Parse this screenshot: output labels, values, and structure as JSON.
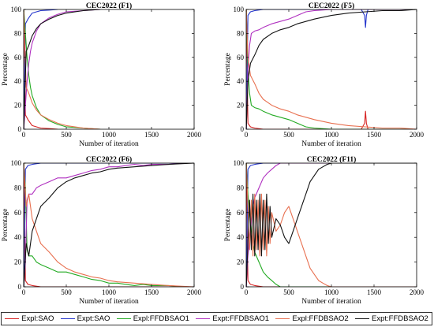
{
  "chart_data": [
    {
      "type": "line",
      "title": "CEC2022 (F1)",
      "xlabel": "Number of iteration",
      "ylabel": "Percentage",
      "xlim": [
        0,
        2000
      ],
      "ylim": [
        0,
        100
      ],
      "xticks": [
        0,
        500,
        1000,
        1500,
        2000
      ],
      "yticks": [
        0,
        20,
        40,
        60,
        80,
        100
      ],
      "grid": false,
      "series": [
        {
          "name": "Expl:SAO",
          "color": "#d62020",
          "x": [
            1,
            20,
            50,
            80,
            100,
            150,
            200,
            300,
            400
          ],
          "y": [
            100,
            12,
            8,
            5,
            3,
            2,
            1,
            0.5,
            0
          ]
        },
        {
          "name": "Expt:SAO",
          "color": "#2233cc",
          "x": [
            1,
            20,
            50,
            80,
            100,
            150,
            200,
            300,
            400
          ],
          "y": [
            0,
            88,
            92,
            95,
            97,
            98,
            99,
            99.5,
            100
          ]
        },
        {
          "name": "Expl:FFDBSAO1",
          "color": "#22aa22",
          "x": [
            1,
            20,
            40,
            60,
            80,
            100,
            150,
            200,
            300,
            400,
            500,
            700,
            900
          ],
          "y": [
            100,
            80,
            60,
            45,
            35,
            28,
            18,
            12,
            7,
            4,
            2,
            1,
            0
          ]
        },
        {
          "name": "Expt:FFDBSAO1",
          "color": "#b030c0",
          "x": [
            1,
            20,
            40,
            60,
            80,
            100,
            150,
            200,
            300,
            400,
            500,
            700,
            900
          ],
          "y": [
            0,
            20,
            40,
            55,
            65,
            72,
            82,
            88,
            93,
            96,
            98,
            99,
            100
          ]
        },
        {
          "name": "Expl:FFDBSAO2",
          "color": "#e87050",
          "x": [
            1,
            30,
            60,
            100,
            150,
            200,
            300,
            400,
            500,
            700,
            900
          ],
          "y": [
            100,
            35,
            30,
            22,
            16,
            12,
            8,
            5,
            3,
            1,
            0
          ]
        },
        {
          "name": "Expt:FFDBSAO2",
          "color": "#111111",
          "x": [
            1,
            30,
            60,
            100,
            150,
            200,
            300,
            400,
            500,
            700,
            900
          ],
          "y": [
            0,
            65,
            70,
            78,
            84,
            88,
            92,
            95,
            97,
            99,
            100
          ]
        }
      ]
    },
    {
      "type": "line",
      "title": "CEC2022 (F5)",
      "xlabel": "Number of iteration",
      "ylabel": "Percentage",
      "xlim": [
        0,
        2000
      ],
      "ylim": [
        0,
        100
      ],
      "xticks": [
        0,
        500,
        1000,
        1500,
        2000
      ],
      "yticks": [
        0,
        20,
        40,
        60,
        80,
        100
      ],
      "grid": false,
      "series": [
        {
          "name": "Expl:SAO",
          "color": "#d62020",
          "x": [
            1,
            20,
            50,
            100,
            200,
            1350,
            1390,
            1400,
            1410,
            1430,
            2000
          ],
          "y": [
            100,
            5,
            2,
            1,
            0,
            0,
            5,
            15,
            5,
            0,
            0
          ]
        },
        {
          "name": "Expt:SAO",
          "color": "#2233cc",
          "x": [
            1,
            20,
            50,
            100,
            200,
            1350,
            1390,
            1400,
            1410,
            1430,
            2000
          ],
          "y": [
            0,
            95,
            98,
            99,
            100,
            100,
            95,
            85,
            95,
            100,
            100
          ]
        },
        {
          "name": "Expl:FFDBSAO1",
          "color": "#22aa22",
          "x": [
            1,
            20,
            40,
            60,
            100,
            150,
            200,
            300,
            400,
            500,
            600,
            700,
            800,
            1000,
            2000
          ],
          "y": [
            100,
            50,
            30,
            20,
            18,
            17,
            15,
            12,
            10,
            8,
            5,
            2,
            1,
            0,
            0
          ]
        },
        {
          "name": "Expt:FFDBSAO1",
          "color": "#b030c0",
          "x": [
            1,
            20,
            40,
            60,
            100,
            150,
            200,
            300,
            400,
            500,
            600,
            700,
            800,
            1000,
            2000
          ],
          "y": [
            0,
            50,
            70,
            80,
            82,
            83,
            85,
            88,
            90,
            92,
            95,
            98,
            99,
            100,
            100
          ]
        },
        {
          "name": "Expl:FFDBSAO2",
          "color": "#e87050",
          "x": [
            1,
            20,
            50,
            100,
            150,
            200,
            300,
            400,
            500,
            600,
            700,
            800,
            1000,
            1200,
            1400,
            1600,
            1800,
            2000
          ],
          "y": [
            100,
            60,
            45,
            38,
            30,
            25,
            20,
            17,
            15,
            12,
            10,
            8,
            5,
            3,
            2,
            1,
            1,
            0
          ]
        },
        {
          "name": "Expt:FFDBSAO2",
          "color": "#111111",
          "x": [
            1,
            20,
            50,
            100,
            150,
            200,
            300,
            400,
            500,
            600,
            700,
            800,
            1000,
            1200,
            1400,
            1600,
            1800,
            2000
          ],
          "y": [
            0,
            40,
            55,
            62,
            70,
            75,
            80,
            83,
            85,
            88,
            90,
            92,
            95,
            97,
            98,
            99,
            99,
            100
          ]
        }
      ]
    },
    {
      "type": "line",
      "title": "CEC2022 (F6)",
      "xlabel": "Number of iteration",
      "ylabel": "Percentage",
      "xlim": [
        0,
        2000
      ],
      "ylim": [
        0,
        100
      ],
      "xticks": [
        0,
        500,
        1000,
        1500,
        2000
      ],
      "yticks": [
        0,
        20,
        40,
        60,
        80,
        100
      ],
      "grid": false,
      "series": [
        {
          "name": "Expl:SAO",
          "color": "#d62020",
          "x": [
            1,
            20,
            50,
            100,
            200,
            2000
          ],
          "y": [
            100,
            5,
            2,
            1,
            0,
            0
          ]
        },
        {
          "name": "Expt:SAO",
          "color": "#2233cc",
          "x": [
            1,
            20,
            50,
            100,
            200,
            2000
          ],
          "y": [
            0,
            95,
            98,
            99,
            100,
            100
          ]
        },
        {
          "name": "Expl:FFDBSAO1",
          "color": "#22aa22",
          "x": [
            1,
            20,
            40,
            60,
            100,
            150,
            200,
            300,
            400,
            500,
            600,
            700,
            800,
            900,
            1000,
            1100,
            1200,
            1300,
            1400,
            1500,
            1700,
            1900,
            2000
          ],
          "y": [
            100,
            80,
            30,
            25,
            25,
            20,
            18,
            15,
            12,
            12,
            10,
            8,
            6,
            5,
            3,
            3,
            2,
            1,
            2,
            1,
            1,
            0,
            0
          ]
        },
        {
          "name": "Expt:FFDBSAO1",
          "color": "#b030c0",
          "x": [
            1,
            20,
            40,
            60,
            100,
            150,
            200,
            300,
            400,
            500,
            600,
            700,
            800,
            900,
            1000,
            1100,
            1200,
            1300,
            1400,
            1500,
            1700,
            1900,
            2000
          ],
          "y": [
            0,
            20,
            70,
            75,
            75,
            80,
            82,
            85,
            88,
            88,
            90,
            92,
            94,
            95,
            97,
            97,
            98,
            99,
            98,
            99,
            99,
            100,
            100
          ]
        },
        {
          "name": "Expl:FFDBSAO2",
          "color": "#e87050",
          "x": [
            1,
            30,
            60,
            100,
            150,
            200,
            300,
            400,
            500,
            600,
            700,
            800,
            900,
            1000,
            1100,
            1300,
            1500,
            1700,
            2000
          ],
          "y": [
            100,
            65,
            75,
            55,
            45,
            35,
            28,
            20,
            15,
            12,
            10,
            8,
            7,
            5,
            4,
            3,
            2,
            1,
            0
          ]
        },
        {
          "name": "Expt:FFDBSAO2",
          "color": "#111111",
          "x": [
            1,
            30,
            60,
            100,
            150,
            200,
            300,
            400,
            500,
            600,
            700,
            800,
            900,
            1000,
            1100,
            1300,
            1500,
            1700,
            2000
          ],
          "y": [
            0,
            35,
            25,
            45,
            55,
            65,
            72,
            80,
            85,
            88,
            90,
            92,
            93,
            95,
            96,
            97,
            98,
            99,
            100
          ]
        }
      ]
    },
    {
      "type": "line",
      "title": "CEC2022 (F11)",
      "xlabel": "Number of iteration",
      "ylabel": "Percentage",
      "xlim": [
        0,
        2000
      ],
      "ylim": [
        0,
        100
      ],
      "xticks": [
        0,
        500,
        1000,
        1500,
        2000
      ],
      "yticks": [
        0,
        20,
        40,
        60,
        80,
        100
      ],
      "grid": false,
      "series": [
        {
          "name": "Expl:SAO",
          "color": "#d62020",
          "x": [
            1,
            20,
            50,
            100,
            200,
            2000
          ],
          "y": [
            100,
            5,
            2,
            1,
            0,
            0
          ]
        },
        {
          "name": "Expt:SAO",
          "color": "#2233cc",
          "x": [
            1,
            20,
            50,
            100,
            200,
            2000
          ],
          "y": [
            0,
            95,
            98,
            99,
            100,
            100
          ]
        },
        {
          "name": "Expl:FFDBSAO1",
          "color": "#22aa22",
          "x": [
            1,
            20,
            40,
            60,
            80,
            100,
            150,
            200,
            250,
            300,
            350,
            400,
            2000
          ],
          "y": [
            100,
            75,
            60,
            45,
            35,
            28,
            20,
            12,
            8,
            5,
            2,
            0,
            0
          ]
        },
        {
          "name": "Expt:FFDBSAO1",
          "color": "#b030c0",
          "x": [
            1,
            20,
            40,
            60,
            80,
            100,
            150,
            200,
            250,
            300,
            350,
            400,
            2000
          ],
          "y": [
            0,
            25,
            40,
            55,
            65,
            72,
            80,
            88,
            92,
            95,
            98,
            100,
            100
          ]
        },
        {
          "name": "Expl:FFDBSAO2",
          "color": "#e87050",
          "x": [
            1,
            40,
            60,
            80,
            100,
            120,
            140,
            160,
            180,
            200,
            220,
            240,
            260,
            280,
            300,
            350,
            400,
            450,
            500,
            550,
            600,
            650,
            700,
            750,
            800,
            850,
            900,
            950,
            1000,
            2000
          ],
          "y": [
            100,
            30,
            70,
            25,
            75,
            30,
            70,
            25,
            75,
            30,
            70,
            25,
            65,
            35,
            60,
            45,
            50,
            60,
            65,
            55,
            45,
            35,
            25,
            15,
            10,
            5,
            3,
            1,
            0,
            0
          ]
        },
        {
          "name": "Expt:FFDBSAO2",
          "color": "#111111",
          "x": [
            1,
            40,
            60,
            80,
            100,
            120,
            140,
            160,
            180,
            200,
            220,
            240,
            260,
            280,
            300,
            350,
            400,
            450,
            500,
            550,
            600,
            650,
            700,
            750,
            800,
            850,
            900,
            950,
            1000,
            2000
          ],
          "y": [
            0,
            70,
            30,
            75,
            25,
            70,
            30,
            75,
            25,
            70,
            30,
            75,
            35,
            65,
            40,
            55,
            50,
            40,
            35,
            45,
            55,
            65,
            75,
            85,
            90,
            95,
            97,
            99,
            100,
            100
          ]
        }
      ]
    }
  ],
  "legend": [
    {
      "label": "Expl:SAO",
      "color": "#d62020"
    },
    {
      "label": "Expt:SAO",
      "color": "#2233cc"
    },
    {
      "label": "Expl:FFDBSAO1",
      "color": "#22aa22"
    },
    {
      "label": "Expt:FFDBSAO1",
      "color": "#b030c0"
    },
    {
      "label": "Expl:FFDBSAO2",
      "color": "#e87050"
    },
    {
      "label": "Expt:FFDBSAO2",
      "color": "#111111"
    }
  ]
}
